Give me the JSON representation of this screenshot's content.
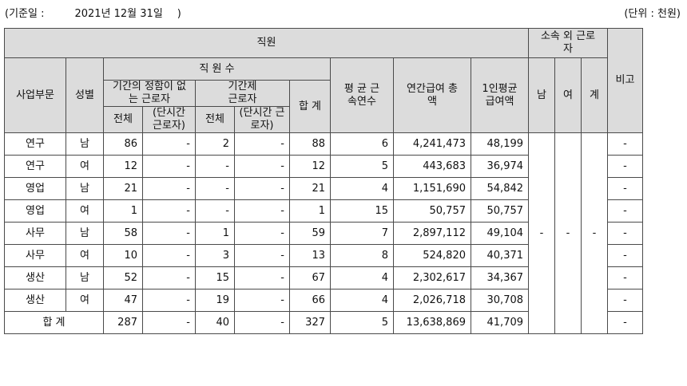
{
  "header": {
    "base_date_label": "(기준일 :",
    "base_date_value": "2021년 12월 31일",
    "base_date_close": ")",
    "unit": "(단위 : 천원)"
  },
  "columns": {
    "employees": "직원",
    "outside_workers": "소속 외 근로자",
    "remarks": "비고",
    "division": "사업부문",
    "gender": "성별",
    "headcount": "직 원 수",
    "permanent": "기간의 정함이 없는 근로자",
    "contract": "기간제 근로자",
    "total_count": "합 계",
    "avg_tenure": "평 균 근속연수",
    "annual_pay": "연간급여 총 액",
    "avg_pay": "1인평균 급여액",
    "all": "전체",
    "part_time": "(단시간 근로자)",
    "male": "남",
    "female": "여",
    "sum": "계"
  },
  "rows": [
    {
      "division": "연구",
      "gender": "남",
      "perm_all": "86",
      "perm_part": "-",
      "cont_all": "2",
      "cont_part": "-",
      "total": "88",
      "tenure": "6",
      "annual": "4,241,473",
      "avg": "48,199",
      "remark": "-"
    },
    {
      "division": "연구",
      "gender": "여",
      "perm_all": "12",
      "perm_part": "-",
      "cont_all": "-",
      "cont_part": "-",
      "total": "12",
      "tenure": "5",
      "annual": "443,683",
      "avg": "36,974",
      "remark": "-"
    },
    {
      "division": "영업",
      "gender": "남",
      "perm_all": "21",
      "perm_part": "-",
      "cont_all": "-",
      "cont_part": "-",
      "total": "21",
      "tenure": "4",
      "annual": "1,151,690",
      "avg": "54,842",
      "remark": "-"
    },
    {
      "division": "영업",
      "gender": "여",
      "perm_all": "1",
      "perm_part": "-",
      "cont_all": "-",
      "cont_part": "-",
      "total": "1",
      "tenure": "15",
      "annual": "50,757",
      "avg": "50,757",
      "remark": "-"
    },
    {
      "division": "사무",
      "gender": "남",
      "perm_all": "58",
      "perm_part": "-",
      "cont_all": "1",
      "cont_part": "-",
      "total": "59",
      "tenure": "7",
      "annual": "2,897,112",
      "avg": "49,104",
      "remark": "-"
    },
    {
      "division": "사무",
      "gender": "여",
      "perm_all": "10",
      "perm_part": "-",
      "cont_all": "3",
      "cont_part": "-",
      "total": "13",
      "tenure": "8",
      "annual": "524,820",
      "avg": "40,371",
      "remark": "-"
    },
    {
      "division": "생산",
      "gender": "남",
      "perm_all": "52",
      "perm_part": "-",
      "cont_all": "15",
      "cont_part": "-",
      "total": "67",
      "tenure": "4",
      "annual": "2,302,617",
      "avg": "34,367",
      "remark": "-"
    },
    {
      "division": "생산",
      "gender": "여",
      "perm_all": "47",
      "perm_part": "-",
      "cont_all": "19",
      "cont_part": "-",
      "total": "66",
      "tenure": "4",
      "annual": "2,026,718",
      "avg": "30,708",
      "remark": "-"
    }
  ],
  "outside": {
    "male": "-",
    "female": "-",
    "sum": "-"
  },
  "total_row": {
    "label": "합 계",
    "perm_all": "287",
    "perm_part": "-",
    "cont_all": "40",
    "cont_part": "-",
    "total": "327",
    "tenure": "5",
    "annual": "13,638,869",
    "avg": "41,709",
    "remark": "-"
  }
}
